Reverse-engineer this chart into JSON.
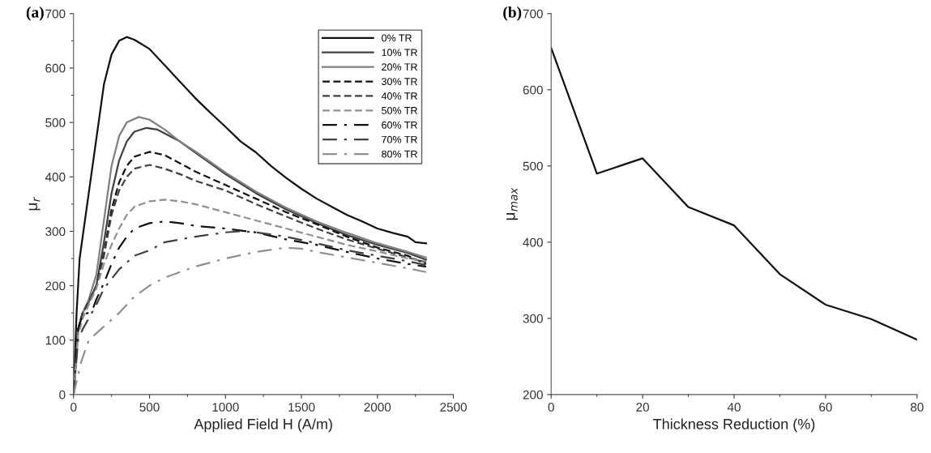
{
  "chart_data": [
    {
      "type": "line",
      "title": "(a)",
      "xlabel": "Applied Field H (A/m)",
      "ylabel": "μ$_{r}$",
      "xlim": [
        0,
        2500
      ],
      "xticks": [
        0,
        500,
        1000,
        1500,
        2000,
        2500
      ],
      "ylim": [
        0,
        700
      ],
      "yticks": [
        0,
        100,
        200,
        300,
        400,
        500,
        600,
        700
      ],
      "grid": false,
      "legend": "top right",
      "series": [
        {
          "name": "0% TR",
          "color": "#111111",
          "line_style": "solid",
          "x": [
            0,
            20,
            40,
            100,
            150,
            200,
            250,
            300,
            350,
            400,
            500,
            600,
            700,
            800,
            900,
            1000,
            1100,
            1200,
            1300,
            1400,
            1500,
            1600,
            1700,
            1800,
            1900,
            2000,
            2100,
            2200,
            2250,
            2320
          ],
          "values": [
            0,
            150,
            250,
            370,
            470,
            570,
            625,
            650,
            657,
            652,
            635,
            605,
            575,
            545,
            518,
            492,
            465,
            445,
            420,
            398,
            378,
            360,
            345,
            330,
            318,
            305,
            297,
            290,
            280,
            278
          ]
        },
        {
          "name": "10% TR",
          "color": "#404040",
          "line_style": "solid",
          "x": [
            0,
            30,
            60,
            100,
            150,
            200,
            250,
            300,
            350,
            400,
            480,
            550,
            700,
            800,
            1000,
            1200,
            1400,
            1600,
            1800,
            2000,
            2200,
            2320
          ],
          "values": [
            0,
            120,
            150,
            170,
            200,
            280,
            370,
            430,
            465,
            483,
            490,
            487,
            465,
            445,
            405,
            370,
            340,
            315,
            293,
            275,
            260,
            248
          ]
        },
        {
          "name": "20% TR",
          "color": "#808080",
          "line_style": "solid",
          "x": [
            0,
            30,
            60,
            100,
            150,
            200,
            250,
            300,
            350,
            430,
            500,
            600,
            700,
            800,
            1000,
            1200,
            1400,
            1600,
            1800,
            2000,
            2200,
            2320
          ],
          "values": [
            0,
            120,
            150,
            175,
            220,
            320,
            420,
            475,
            500,
            510,
            505,
            487,
            465,
            447,
            408,
            373,
            343,
            318,
            297,
            278,
            262,
            252
          ]
        },
        {
          "name": "30% TR",
          "color": "#111111",
          "line_style": "dashed",
          "x": [
            0,
            30,
            60,
            100,
            150,
            200,
            250,
            300,
            350,
            400,
            500,
            600,
            700,
            800,
            1000,
            1200,
            1400,
            1600,
            1800,
            2000,
            2200,
            2320
          ],
          "values": [
            0,
            120,
            150,
            170,
            200,
            260,
            340,
            390,
            420,
            437,
            446,
            440,
            425,
            410,
            385,
            360,
            335,
            313,
            290,
            270,
            255,
            240
          ]
        },
        {
          "name": "40% TR",
          "color": "#404040",
          "line_style": "dashed",
          "x": [
            0,
            30,
            60,
            100,
            150,
            200,
            250,
            300,
            350,
            400,
            500,
            600,
            700,
            800,
            1000,
            1200,
            1400,
            1600,
            1800,
            2000,
            2200,
            2320
          ],
          "values": [
            0,
            120,
            150,
            170,
            200,
            255,
            330,
            375,
            400,
            415,
            422,
            415,
            405,
            393,
            375,
            350,
            327,
            305,
            285,
            268,
            252,
            243
          ]
        },
        {
          "name": "50% TR",
          "color": "#909090",
          "line_style": "dashed",
          "x": [
            0,
            30,
            60,
            100,
            150,
            200,
            250,
            300,
            350,
            400,
            500,
            600,
            700,
            800,
            1000,
            1200,
            1400,
            1600,
            1800,
            2000,
            2200,
            2320
          ],
          "values": [
            0,
            110,
            140,
            165,
            195,
            240,
            275,
            305,
            330,
            345,
            355,
            358,
            355,
            350,
            335,
            320,
            305,
            290,
            275,
            263,
            250,
            245
          ]
        },
        {
          "name": "60% TR",
          "color": "#111111",
          "line_style": "dashdot",
          "x": [
            0,
            30,
            60,
            100,
            130,
            150,
            200,
            250,
            300,
            350,
            400,
            500,
            600,
            700,
            800,
            1000,
            1200,
            1400,
            1600,
            1800,
            2000,
            2200,
            2320
          ],
          "values": [
            0,
            120,
            148,
            150,
            160,
            175,
            205,
            240,
            270,
            290,
            305,
            315,
            318,
            315,
            310,
            305,
            298,
            285,
            275,
            262,
            250,
            240,
            235
          ]
        },
        {
          "name": "70% TR",
          "color": "#404040",
          "line_style": "dashdot",
          "x": [
            0,
            30,
            60,
            100,
            150,
            200,
            300,
            400,
            500,
            600,
            800,
            1000,
            1100,
            1200,
            1400,
            1600,
            1800,
            2000,
            2200,
            2320
          ],
          "values": [
            0,
            100,
            120,
            140,
            165,
            195,
            230,
            255,
            265,
            280,
            290,
            298,
            300,
            298,
            290,
            278,
            265,
            255,
            245,
            238
          ]
        },
        {
          "name": "80% TR",
          "color": "#909090",
          "line_style": "dashdot",
          "x": [
            0,
            50,
            100,
            200,
            300,
            400,
            500,
            600,
            800,
            1000,
            1200,
            1400,
            1500,
            1600,
            1800,
            2000,
            2200,
            2320
          ],
          "values": [
            0,
            60,
            100,
            125,
            150,
            180,
            200,
            215,
            235,
            250,
            262,
            270,
            268,
            262,
            252,
            242,
            232,
            225
          ]
        }
      ]
    },
    {
      "type": "line",
      "title": "(b)",
      "xlabel": "Thickness Reduction (%)",
      "ylabel": "μ$_{max}$",
      "xlim": [
        0,
        80
      ],
      "xticks": [
        0,
        20,
        40,
        60,
        80
      ],
      "ylim": [
        200,
        700
      ],
      "yticks": [
        200,
        300,
        400,
        500,
        600,
        700
      ],
      "grid": false,
      "series": [
        {
          "color": "#111111",
          "line_style": "solid",
          "x": [
            0,
            10,
            20,
            30,
            40,
            50,
            60,
            70,
            80
          ],
          "values": [
            655,
            490,
            510,
            446,
            422,
            358,
            318,
            299,
            272
          ]
        }
      ]
    }
  ]
}
